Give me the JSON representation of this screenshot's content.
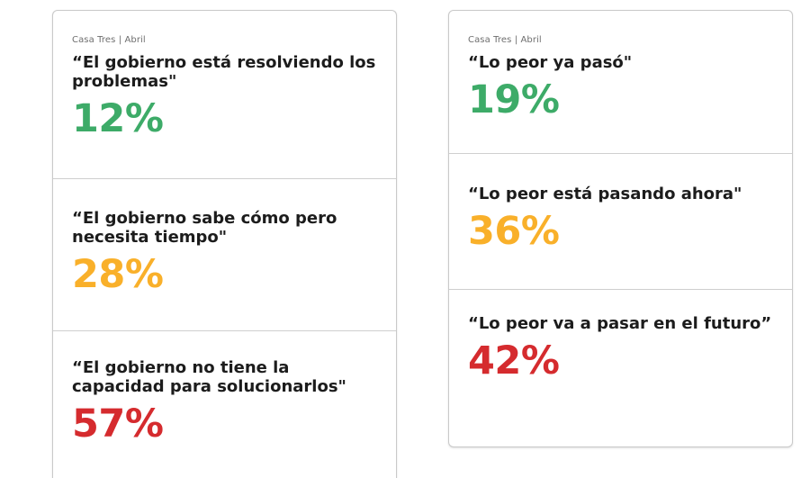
{
  "chart_data": [
    {
      "type": "table",
      "source": "Casa Tres | Abril",
      "rows": [
        {
          "label": "“El gobierno está resolviendo los problemas\"",
          "value": "12%",
          "color": "#3dab68"
        },
        {
          "label": "“El gobierno sabe cómo pero necesita tiempo\"",
          "value": "28%",
          "color": "#f9b02a"
        },
        {
          "label": "“El gobierno no tiene la capacidad para solucionarlos\"",
          "value": "57%",
          "color": "#d52b2e"
        }
      ]
    },
    {
      "type": "table",
      "source": "Casa Tres | Abril",
      "rows": [
        {
          "label": "“Lo peor ya pasó\"",
          "value": "19%",
          "color": "#3dab68"
        },
        {
          "label": "“Lo peor está pasando ahora\"",
          "value": "36%",
          "color": "#f9b02a"
        },
        {
          "label": "“Lo peor va a pasar en el futuro”",
          "value": "42%",
          "color": "#d52b2e"
        }
      ]
    }
  ]
}
